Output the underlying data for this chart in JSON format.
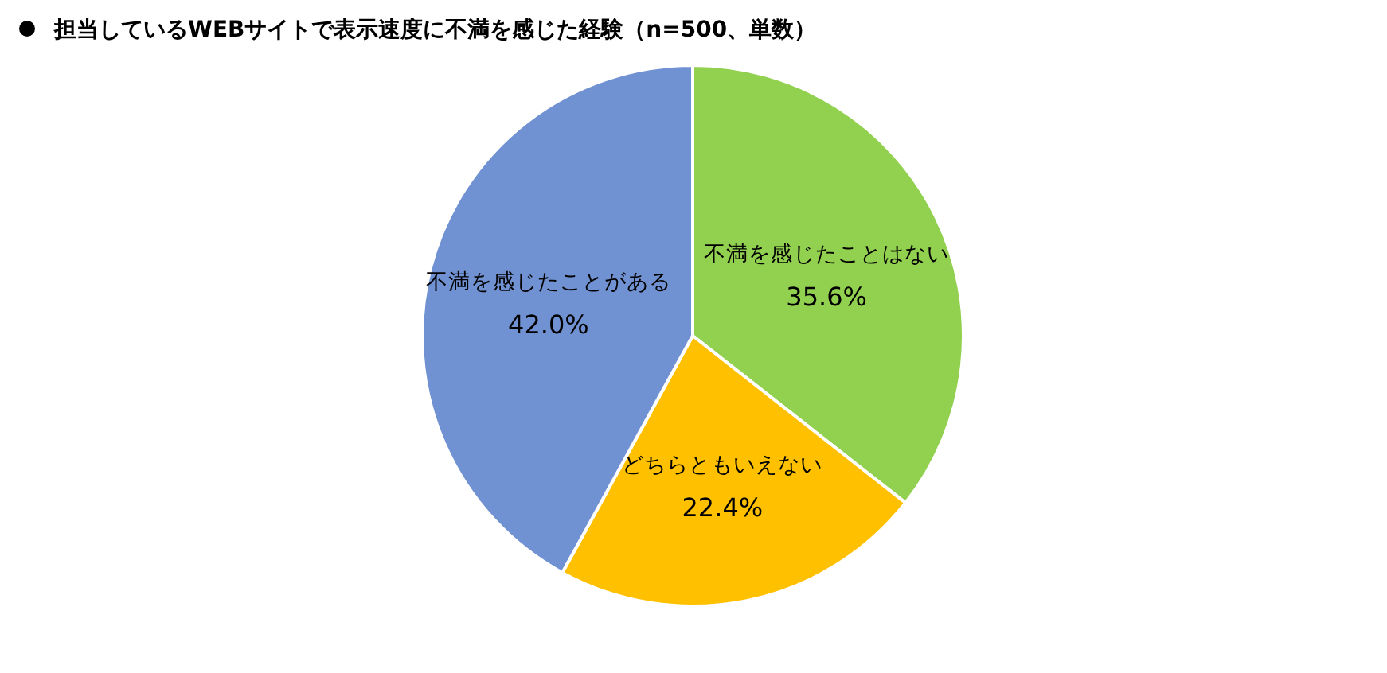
{
  "chart_data": {
    "type": "pie",
    "title": "担当しているWEBサイトで表示速度に不満を感じた経験（n=500、単数）",
    "categories": [
      "不満を感じたことはない",
      "どちらともいえない",
      "不満を感じたことがある"
    ],
    "values": [
      35.6,
      22.4,
      42.0
    ],
    "value_labels": [
      "35.6%",
      "22.4%",
      "42.0%"
    ],
    "colors": [
      "#92d050",
      "#ffc000",
      "#7092d2"
    ]
  }
}
